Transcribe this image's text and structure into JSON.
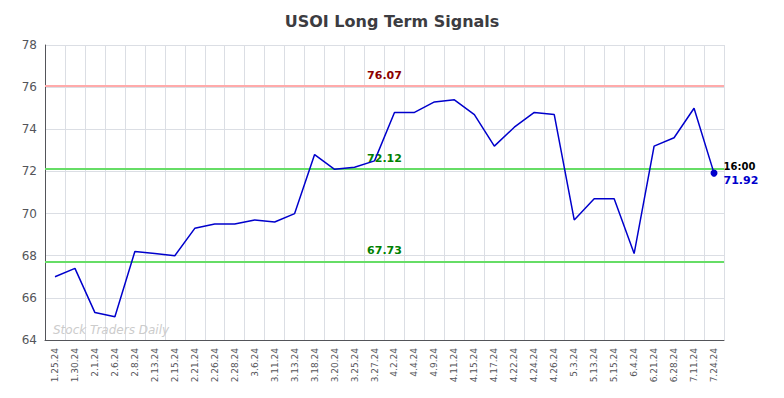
{
  "chart_data": {
    "type": "line",
    "title": "USOI Long Term Signals",
    "categories": [
      "1.25.24",
      "1.30.24",
      "2.1.24",
      "2.6.24",
      "2.8.24",
      "2.13.24",
      "2.15.24",
      "2.21.24",
      "2.26.24",
      "2.28.24",
      "3.6.24",
      "3.11.24",
      "3.13.24",
      "3.18.24",
      "3.20.24",
      "3.25.24",
      "3.27.24",
      "4.2.24",
      "4.4.24",
      "4.9.24",
      "4.11.24",
      "4.15.24",
      "4.17.24",
      "4.22.24",
      "4.24.24",
      "4.26.24",
      "5.3.24",
      "5.13.24",
      "5.15.24",
      "6.4.24",
      "6.21.24",
      "6.28.24",
      "7.11.24",
      "7.24.24"
    ],
    "values": [
      67.0,
      67.4,
      65.3,
      65.1,
      68.2,
      68.1,
      68.0,
      69.3,
      69.5,
      69.5,
      69.7,
      69.6,
      70.0,
      72.8,
      72.1,
      72.2,
      72.5,
      74.8,
      74.8,
      75.3,
      75.4,
      74.7,
      73.2,
      74.1,
      74.8,
      74.7,
      69.7,
      70.7,
      70.7,
      68.1,
      73.2,
      73.6,
      75.0,
      71.92
    ],
    "color": "#0000cc",
    "ylim": [
      64,
      78
    ],
    "yticks": [
      64,
      66,
      68,
      70,
      72,
      74,
      76,
      78
    ],
    "grid": true,
    "hlines": [
      {
        "value": 76.07,
        "label": "76.07",
        "color": "#ffaaaa",
        "label_color": "darkred"
      },
      {
        "value": 72.12,
        "label": "72.12",
        "color": "#66dd66",
        "label_color": "green"
      },
      {
        "value": 67.73,
        "label": "67.73",
        "color": "#66dd66",
        "label_color": "green"
      }
    ],
    "annotations": {
      "last_point": [
        "16:00",
        "71.92"
      ],
      "watermark": "Stock Traders Daily"
    }
  }
}
